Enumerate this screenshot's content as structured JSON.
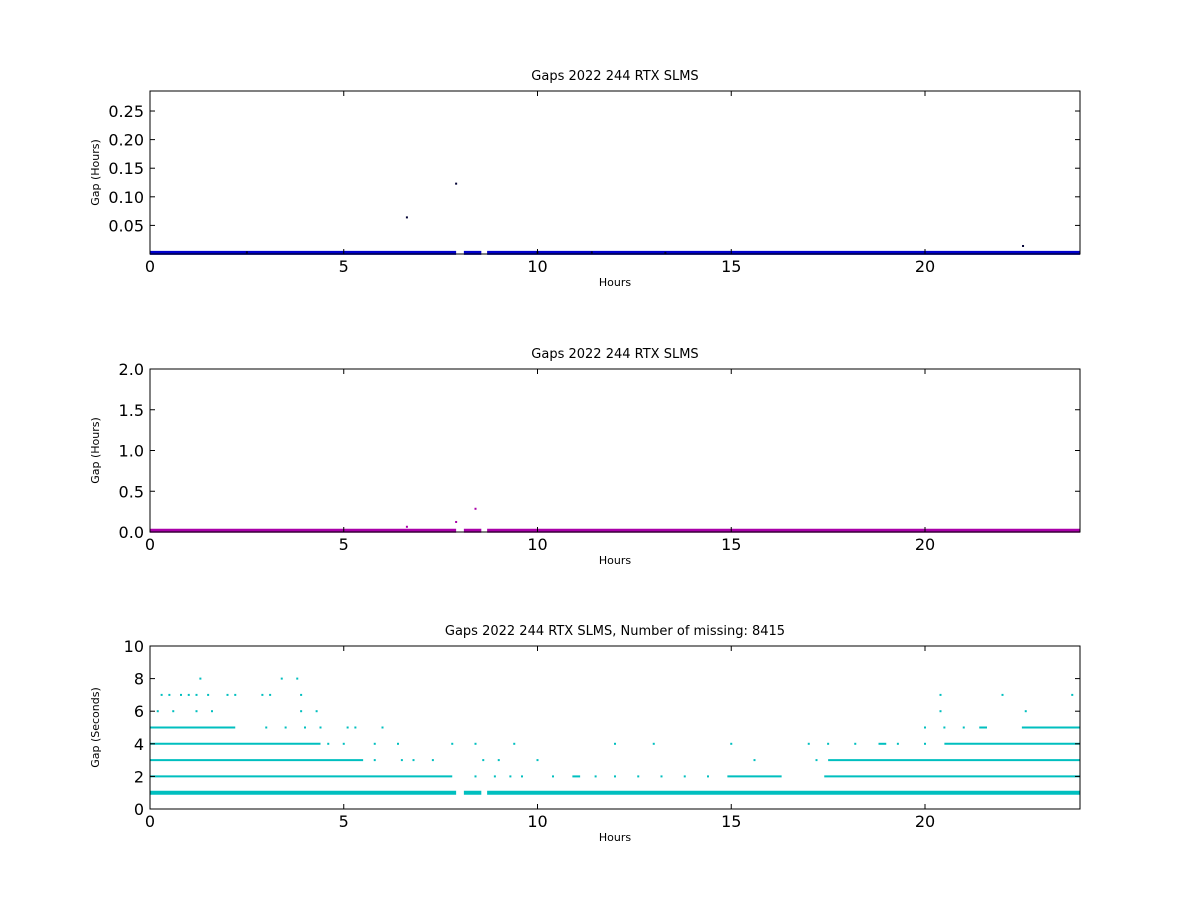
{
  "chart_data": [
    {
      "type": "scatter",
      "title": "Gaps 2022 244 RTX  SLMS",
      "xlabel": "Hours",
      "ylabel": "Gap (Hours)",
      "xlim": [
        0,
        24
      ],
      "ylim": [
        0,
        0.285
      ],
      "xticks": [
        "0",
        "5",
        "10",
        "15",
        "20"
      ],
      "yticks": [
        "0.05",
        "0.10",
        "0.15",
        "0.20",
        "0.25"
      ],
      "color": "#0000cc",
      "grid": false,
      "baseline": {
        "y": 0.0003,
        "segments": [
          [
            0,
            7.9
          ],
          [
            8.1,
            8.55
          ],
          [
            8.7,
            24
          ]
        ]
      },
      "outliers": [
        {
          "x": 6.63,
          "y": 0.064
        },
        {
          "x": 7.9,
          "y": 0.123
        },
        {
          "x": 22.53,
          "y": 0.014
        },
        {
          "x": 2.5,
          "y": 0.003
        },
        {
          "x": 10.0,
          "y": 0.003
        },
        {
          "x": 11.4,
          "y": 0.003
        },
        {
          "x": 13.3,
          "y": 0.002
        }
      ]
    },
    {
      "type": "scatter",
      "title": "Gaps 2022 244 RTX  SLMS",
      "xlabel": "Hours",
      "ylabel": "Gap (Hours)",
      "xlim": [
        0,
        24
      ],
      "ylim": [
        0,
        2.0
      ],
      "xticks": [
        "0",
        "5",
        "10",
        "15",
        "20"
      ],
      "yticks": [
        "0.0",
        "0.5",
        "1.0",
        "1.5",
        "2.0"
      ],
      "color": "#aa00aa",
      "grid": false,
      "baseline": {
        "y": 0.003,
        "segments": [
          [
            0,
            7.9
          ],
          [
            8.1,
            8.55
          ],
          [
            8.7,
            24
          ]
        ]
      },
      "outliers": [
        {
          "x": 6.63,
          "y": 0.064
        },
        {
          "x": 7.9,
          "y": 0.123
        },
        {
          "x": 8.4,
          "y": 0.285
        }
      ]
    },
    {
      "type": "scatter",
      "title": "Gaps 2022 244 RTX  SLMS, Number of missing: 8415",
      "xlabel": "Hours",
      "ylabel": "Gap (Seconds)",
      "xlim": [
        0,
        24
      ],
      "ylim": [
        0,
        10
      ],
      "xticks": [
        "0",
        "5",
        "10",
        "15",
        "20"
      ],
      "yticks": [
        "0",
        "2",
        "4",
        "6",
        "8",
        "10"
      ],
      "color": "#00bfbf",
      "grid": false,
      "levels": [
        {
          "y": 1,
          "ranges": [
            [
              0,
              7.9
            ],
            [
              8.1,
              8.55
            ],
            [
              8.7,
              24
            ]
          ]
        },
        {
          "y": 2,
          "ranges": [
            [
              0,
              7.8
            ],
            [
              10.9,
              11.1
            ],
            [
              14.9,
              16.3
            ],
            [
              17.4,
              24
            ]
          ]
        },
        {
          "y": 3,
          "ranges": [
            [
              0,
              5.5
            ],
            [
              17.5,
              24
            ]
          ]
        },
        {
          "y": 4,
          "ranges": [
            [
              0,
              4.4
            ],
            [
              18.8,
              19.0
            ],
            [
              20.5,
              24
            ]
          ]
        },
        {
          "y": 5,
          "ranges": [
            [
              0,
              2.2
            ],
            [
              21.4,
              21.6
            ],
            [
              22.5,
              24
            ]
          ]
        }
      ],
      "scattered": [
        {
          "x": 0.2,
          "y": 6
        },
        {
          "x": 0.6,
          "y": 6
        },
        {
          "x": 0.3,
          "y": 7
        },
        {
          "x": 0.5,
          "y": 7
        },
        {
          "x": 0.8,
          "y": 7
        },
        {
          "x": 1.0,
          "y": 7
        },
        {
          "x": 1.3,
          "y": 8
        },
        {
          "x": 1.2,
          "y": 7
        },
        {
          "x": 1.5,
          "y": 7
        },
        {
          "x": 1.2,
          "y": 6
        },
        {
          "x": 1.6,
          "y": 6
        },
        {
          "x": 2.0,
          "y": 7
        },
        {
          "x": 2.2,
          "y": 7
        },
        {
          "x": 2.9,
          "y": 7
        },
        {
          "x": 3.1,
          "y": 7
        },
        {
          "x": 3.4,
          "y": 8
        },
        {
          "x": 3.8,
          "y": 8
        },
        {
          "x": 3.9,
          "y": 7
        },
        {
          "x": 3.9,
          "y": 6
        },
        {
          "x": 3.0,
          "y": 5
        },
        {
          "x": 3.5,
          "y": 5
        },
        {
          "x": 4.0,
          "y": 5
        },
        {
          "x": 4.3,
          "y": 6
        },
        {
          "x": 4.4,
          "y": 5
        },
        {
          "x": 5.1,
          "y": 5
        },
        {
          "x": 5.3,
          "y": 5
        },
        {
          "x": 6.0,
          "y": 5
        },
        {
          "x": 4.6,
          "y": 4
        },
        {
          "x": 5.0,
          "y": 4
        },
        {
          "x": 5.8,
          "y": 4
        },
        {
          "x": 6.4,
          "y": 4
        },
        {
          "x": 7.8,
          "y": 4
        },
        {
          "x": 8.4,
          "y": 4
        },
        {
          "x": 9.4,
          "y": 4
        },
        {
          "x": 12.0,
          "y": 4
        },
        {
          "x": 13.0,
          "y": 4
        },
        {
          "x": 15.0,
          "y": 4
        },
        {
          "x": 17.0,
          "y": 4
        },
        {
          "x": 17.5,
          "y": 4
        },
        {
          "x": 18.2,
          "y": 4
        },
        {
          "x": 5.8,
          "y": 3
        },
        {
          "x": 6.5,
          "y": 3
        },
        {
          "x": 6.8,
          "y": 3
        },
        {
          "x": 7.3,
          "y": 3
        },
        {
          "x": 8.6,
          "y": 3
        },
        {
          "x": 9.0,
          "y": 3
        },
        {
          "x": 10.0,
          "y": 3
        },
        {
          "x": 15.6,
          "y": 3
        },
        {
          "x": 17.2,
          "y": 3
        },
        {
          "x": 8.4,
          "y": 2
        },
        {
          "x": 8.9,
          "y": 2
        },
        {
          "x": 9.3,
          "y": 2
        },
        {
          "x": 9.6,
          "y": 2
        },
        {
          "x": 10.4,
          "y": 2
        },
        {
          "x": 11.5,
          "y": 2
        },
        {
          "x": 12.0,
          "y": 2
        },
        {
          "x": 12.6,
          "y": 2
        },
        {
          "x": 13.2,
          "y": 2
        },
        {
          "x": 13.8,
          "y": 2
        },
        {
          "x": 14.4,
          "y": 2
        },
        {
          "x": 20.0,
          "y": 5
        },
        {
          "x": 20.5,
          "y": 5
        },
        {
          "x": 21.0,
          "y": 5
        },
        {
          "x": 20.4,
          "y": 7
        },
        {
          "x": 22.0,
          "y": 7
        },
        {
          "x": 22.6,
          "y": 6
        },
        {
          "x": 23.8,
          "y": 7
        },
        {
          "x": 20.4,
          "y": 6
        },
        {
          "x": 19.3,
          "y": 4
        },
        {
          "x": 20.0,
          "y": 4
        }
      ]
    }
  ]
}
